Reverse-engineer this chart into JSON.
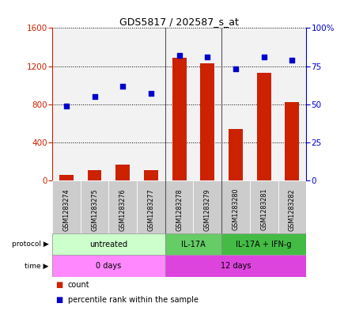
{
  "title": "GDS5817 / 202587_s_at",
  "samples": [
    "GSM1283274",
    "GSM1283275",
    "GSM1283276",
    "GSM1283277",
    "GSM1283278",
    "GSM1283279",
    "GSM1283280",
    "GSM1283281",
    "GSM1283282"
  ],
  "count_values": [
    55,
    110,
    165,
    110,
    1290,
    1230,
    540,
    1130,
    820
  ],
  "percentile_values": [
    49,
    55,
    62,
    57,
    82,
    81,
    73,
    81,
    79
  ],
  "ylim_left": [
    0,
    1600
  ],
  "ylim_right": [
    0,
    100
  ],
  "yticks_left": [
    0,
    400,
    800,
    1200,
    1600
  ],
  "yticks_right": [
    0,
    25,
    50,
    75,
    100
  ],
  "protocol_groups": [
    {
      "label": "untreated",
      "start": 0,
      "end": 4,
      "color": "#ccffcc"
    },
    {
      "label": "IL-17A",
      "start": 4,
      "end": 6,
      "color": "#66cc66"
    },
    {
      "label": "IL-17A + IFN-g",
      "start": 6,
      "end": 9,
      "color": "#44bb44"
    }
  ],
  "time_groups": [
    {
      "label": "0 days",
      "start": 0,
      "end": 4,
      "color": "#ff88ff"
    },
    {
      "label": "12 days",
      "start": 4,
      "end": 9,
      "color": "#dd44dd"
    }
  ],
  "bar_color": "#cc2200",
  "dot_color": "#0000cc",
  "grid_color": "#000000",
  "background_color": "#ffffff",
  "label_count": "count",
  "label_percentile": "percentile rank within the sample",
  "left_axis_color": "#cc2200",
  "right_axis_color": "#0000cc",
  "bar_width": 0.5,
  "col_bg_color": "#cccccc",
  "separator_color": "#555555"
}
